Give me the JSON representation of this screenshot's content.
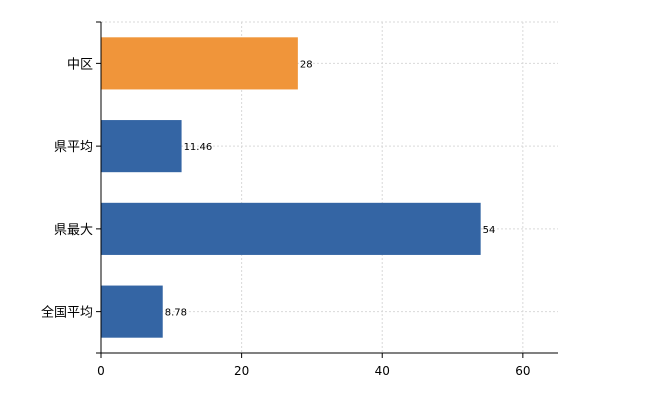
{
  "chart_data": {
    "type": "bar",
    "orientation": "horizontal",
    "categories": [
      "中区",
      "県平均",
      "県最大",
      "全国平均"
    ],
    "values": [
      28,
      11.46,
      54,
      8.78
    ],
    "value_labels": [
      "28",
      "11.46",
      "54",
      "8.78"
    ],
    "bar_colors": [
      "#f0953a",
      "#3465a4",
      "#3465a4",
      "#3465a4"
    ],
    "xlim": [
      0,
      65
    ],
    "xticks": [
      0,
      20,
      40,
      60
    ],
    "grid": true,
    "title": "",
    "xlabel": "",
    "ylabel": ""
  }
}
